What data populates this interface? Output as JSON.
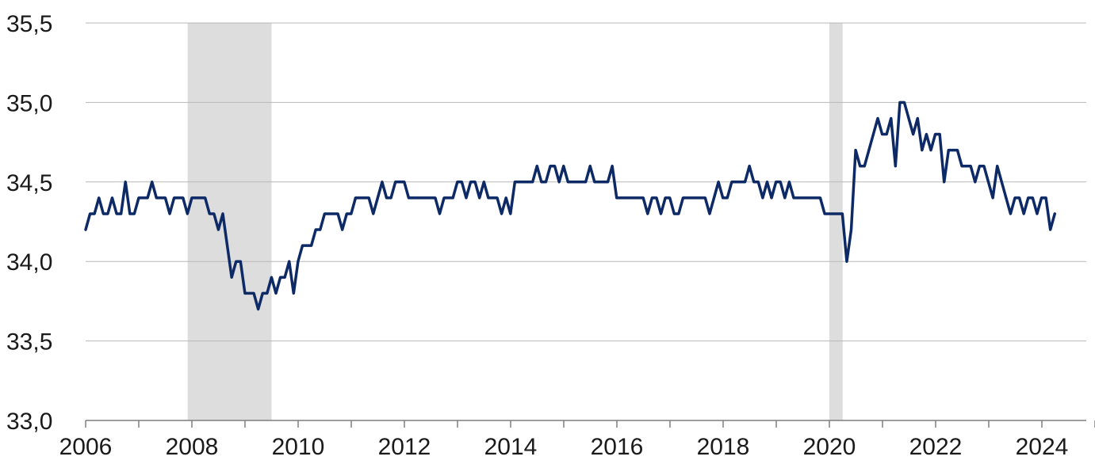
{
  "chart_data": {
    "type": "line",
    "title": "",
    "xlabel": "",
    "ylabel": "",
    "xlim": [
      2006,
      2025
    ],
    "ylim": [
      33.0,
      35.5
    ],
    "grid": "horizontal",
    "line_color": "#0d2a66",
    "recession_color": "#dddddd",
    "grid_color": "#b8b8b8",
    "axis_color": "#7f7f7f",
    "x_tick_labels": [
      "2006",
      "2008",
      "2010",
      "2012",
      "2014",
      "2016",
      "2018",
      "2020",
      "2022",
      "2024"
    ],
    "x_ticks": [
      2006,
      2008,
      2010,
      2012,
      2014,
      2016,
      2018,
      2020,
      2022,
      2024
    ],
    "y_ticks": [
      33.0,
      33.5,
      34.0,
      34.5,
      35.0,
      35.5
    ],
    "y_tick_labels": [
      "33,0",
      "33,5",
      "34,0",
      "34,5",
      "35,0",
      "35,5"
    ],
    "shaded_periods": [
      {
        "start": 2007.92,
        "end": 2009.5
      },
      {
        "start": 2020.0,
        "end": 2020.25
      }
    ],
    "series": [
      {
        "start_year": 2006.0,
        "step": 0.0833,
        "values": [
          34.2,
          34.3,
          34.3,
          34.4,
          34.3,
          34.3,
          34.4,
          34.3,
          34.3,
          34.5,
          34.3,
          34.3,
          34.4,
          34.4,
          34.4,
          34.5,
          34.4,
          34.4,
          34.4,
          34.3,
          34.4,
          34.4,
          34.4,
          34.3,
          34.4,
          34.4,
          34.4,
          34.4,
          34.3,
          34.3,
          34.2,
          34.3,
          34.1,
          33.9,
          34.0,
          34.0,
          33.8,
          33.8,
          33.8,
          33.7,
          33.8,
          33.8,
          33.9,
          33.8,
          33.9,
          33.9,
          34.0,
          33.8,
          34.0,
          34.1,
          34.1,
          34.1,
          34.2,
          34.2,
          34.3,
          34.3,
          34.3,
          34.3,
          34.2,
          34.3,
          34.3,
          34.4,
          34.4,
          34.4,
          34.4,
          34.3,
          34.4,
          34.5,
          34.4,
          34.4,
          34.5,
          34.5,
          34.5,
          34.4,
          34.4,
          34.4,
          34.4,
          34.4,
          34.4,
          34.4,
          34.3,
          34.4,
          34.4,
          34.4,
          34.5,
          34.5,
          34.4,
          34.5,
          34.5,
          34.4,
          34.5,
          34.4,
          34.4,
          34.4,
          34.3,
          34.4,
          34.3,
          34.5,
          34.5,
          34.5,
          34.5,
          34.5,
          34.6,
          34.5,
          34.5,
          34.6,
          34.6,
          34.5,
          34.6,
          34.5,
          34.5,
          34.5,
          34.5,
          34.5,
          34.6,
          34.5,
          34.5,
          34.5,
          34.5,
          34.6,
          34.4,
          34.4,
          34.4,
          34.4,
          34.4,
          34.4,
          34.4,
          34.3,
          34.4,
          34.4,
          34.3,
          34.4,
          34.4,
          34.3,
          34.3,
          34.4,
          34.4,
          34.4,
          34.4,
          34.4,
          34.4,
          34.3,
          34.4,
          34.5,
          34.4,
          34.4,
          34.5,
          34.5,
          34.5,
          34.5,
          34.6,
          34.5,
          34.5,
          34.4,
          34.5,
          34.4,
          34.5,
          34.5,
          34.4,
          34.5,
          34.4,
          34.4,
          34.4,
          34.4,
          34.4,
          34.4,
          34.4,
          34.3,
          34.3,
          34.3,
          34.3,
          34.3,
          34.0,
          34.2,
          34.7,
          34.6,
          34.6,
          34.7,
          34.8,
          34.9,
          34.8,
          34.8,
          34.9,
          34.6,
          35.0,
          35.0,
          34.9,
          34.8,
          34.9,
          34.7,
          34.8,
          34.7,
          34.8,
          34.8,
          34.5,
          34.7,
          34.7,
          34.7,
          34.6,
          34.6,
          34.6,
          34.5,
          34.6,
          34.6,
          34.5,
          34.4,
          34.6,
          34.5,
          34.4,
          34.3,
          34.4,
          34.4,
          34.3,
          34.4,
          34.4,
          34.3,
          34.4,
          34.4,
          34.2,
          34.3
        ]
      }
    ]
  }
}
